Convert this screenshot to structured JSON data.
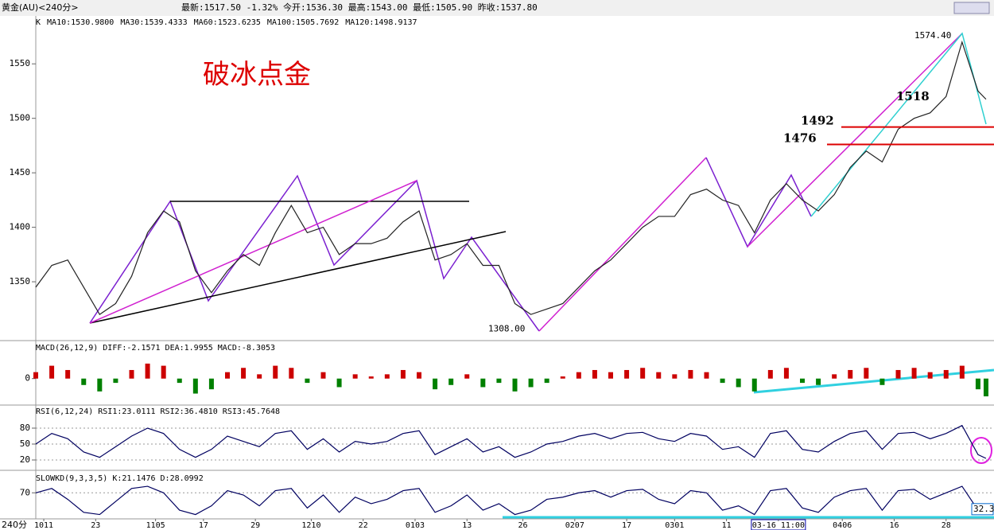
{
  "header": {
    "instrument": "黄金(AU)<240分>",
    "quote": "最新:1517.50 -1.32% 今开:1536.30 最高:1543.00 最低:1505.90 昨收:1537.80",
    "period": "240分"
  },
  "ma_legend": [
    {
      "text": "K",
      "color": "#000000"
    },
    {
      "text": "MA10:1530.9800",
      "color": "#000000"
    },
    {
      "text": "MA30:1539.4333",
      "color": "#c08000"
    },
    {
      "text": "MA60:1523.6235",
      "color": "#000060"
    },
    {
      "text": "MA100:1505.7692",
      "color": "#000060"
    },
    {
      "text": "MA120:1498.9137",
      "color": "#e070e0"
    }
  ],
  "chart_data": [
    {
      "type": "line",
      "title": "破冰点金",
      "color": "#222222",
      "ylim": [
        1296,
        1594
      ],
      "xlim": [
        0,
        240
      ],
      "yticks": [
        1350,
        1400,
        1450,
        1500,
        1550
      ],
      "x": [
        0,
        4,
        8,
        12,
        16,
        20,
        24,
        28,
        32,
        36,
        40,
        44,
        48,
        52,
        56,
        60,
        64,
        68,
        72,
        76,
        80,
        84,
        88,
        92,
        96,
        100,
        104,
        108,
        112,
        116,
        120,
        124,
        128,
        132,
        136,
        140,
        144,
        148,
        152,
        156,
        160,
        164,
        168,
        172,
        176,
        180,
        184,
        188,
        192,
        196,
        200,
        204,
        208,
        212,
        216,
        220,
        224,
        228,
        232,
        236,
        238
      ],
      "values": [
        1345,
        1365,
        1370,
        1345,
        1320,
        1330,
        1355,
        1395,
        1415,
        1405,
        1360,
        1340,
        1360,
        1375,
        1365,
        1395,
        1420,
        1395,
        1400,
        1375,
        1385,
        1385,
        1390,
        1405,
        1415,
        1370,
        1375,
        1385,
        1365,
        1365,
        1330,
        1320,
        1325,
        1330,
        1345,
        1360,
        1370,
        1385,
        1400,
        1410,
        1410,
        1430,
        1435,
        1425,
        1420,
        1395,
        1425,
        1440,
        1425,
        1415,
        1430,
        1455,
        1470,
        1460,
        1490,
        1500,
        1505,
        1520,
        1570,
        1525,
        1517.5
      ],
      "annotations": [
        {
          "value": 1574.4,
          "label": "1574.40",
          "color": "#000000"
        },
        {
          "value": 1308,
          "label": "1308.00",
          "color": "#000000"
        },
        {
          "value": 1518,
          "color": "#0000cc"
        }
      ],
      "hlines": [
        {
          "value": 1492,
          "color": "#dd0000"
        },
        {
          "value": 1476,
          "color": "#dd0000"
        }
      ]
    },
    {
      "type": "bar",
      "title": "MACD(26,12,9) DIFF:-2.1571 DEA:1.9955 MACD:-8.3053",
      "ylim": [
        -12,
        17
      ],
      "yticks": [
        0
      ],
      "x": [
        0,
        4,
        8,
        12,
        16,
        20,
        24,
        28,
        32,
        36,
        40,
        44,
        48,
        52,
        56,
        60,
        64,
        68,
        72,
        76,
        80,
        84,
        88,
        92,
        96,
        100,
        104,
        108,
        112,
        116,
        120,
        124,
        128,
        132,
        136,
        140,
        144,
        148,
        152,
        156,
        160,
        164,
        168,
        172,
        176,
        180,
        184,
        188,
        192,
        196,
        200,
        204,
        208,
        212,
        216,
        220,
        224,
        228,
        232,
        236,
        238
      ],
      "values": [
        3,
        6,
        4,
        -3,
        -6,
        -2,
        4,
        7,
        6,
        -2,
        -7,
        -5,
        3,
        5,
        2,
        6,
        5,
        -2,
        3,
        -4,
        2,
        1,
        2,
        4,
        3,
        -5,
        -3,
        2,
        -4,
        -2,
        -6,
        -4,
        -2,
        1,
        3,
        4,
        3,
        4,
        5,
        3,
        2,
        4,
        3,
        -2,
        -4,
        -6,
        4,
        5,
        -2,
        -3,
        2,
        4,
        5,
        -3,
        4,
        5,
        3,
        4,
        6,
        -5,
        -8.3
      ],
      "up_color": "#cc0000",
      "down_color": "#008000"
    },
    {
      "type": "line",
      "title": "RSI(6,12,24) RSI1:23.0111 RSI2:36.4810 RSI3:45.7648",
      "color": "#000060",
      "ylim": [
        2,
        122
      ],
      "yticks": [
        20,
        50,
        80
      ],
      "x": [
        0,
        4,
        8,
        12,
        16,
        20,
        24,
        28,
        32,
        36,
        40,
        44,
        48,
        52,
        56,
        60,
        64,
        68,
        72,
        76,
        80,
        84,
        88,
        92,
        96,
        100,
        104,
        108,
        112,
        116,
        120,
        124,
        128,
        132,
        136,
        140,
        144,
        148,
        152,
        156,
        160,
        164,
        168,
        172,
        176,
        180,
        184,
        188,
        192,
        196,
        200,
        204,
        208,
        212,
        216,
        220,
        224,
        228,
        232,
        236,
        238
      ],
      "values": [
        50,
        70,
        60,
        35,
        25,
        45,
        65,
        80,
        70,
        40,
        25,
        40,
        65,
        55,
        45,
        70,
        75,
        40,
        60,
        35,
        55,
        50,
        55,
        70,
        75,
        30,
        45,
        60,
        35,
        45,
        25,
        35,
        50,
        55,
        65,
        70,
        60,
        70,
        72,
        60,
        55,
        70,
        65,
        40,
        45,
        25,
        70,
        75,
        40,
        35,
        55,
        70,
        75,
        40,
        70,
        72,
        60,
        70,
        85,
        30,
        23.0111
      ]
    },
    {
      "type": "line",
      "title": "SLOWKD(9,3,3,5) K:21.1476 D:28.0992",
      "color": "#000060",
      "ylim": [
        10,
        120
      ],
      "yticks": [
        70
      ],
      "x": [
        0,
        4,
        8,
        12,
        16,
        20,
        24,
        28,
        32,
        36,
        40,
        44,
        48,
        52,
        56,
        60,
        64,
        68,
        72,
        76,
        80,
        84,
        88,
        92,
        96,
        100,
        104,
        108,
        112,
        116,
        120,
        124,
        128,
        132,
        136,
        140,
        144,
        148,
        152,
        156,
        160,
        164,
        168,
        172,
        176,
        180,
        184,
        188,
        192,
        196,
        200,
        204,
        208,
        212,
        216,
        220,
        224,
        228,
        232,
        236,
        238
      ],
      "values": [
        70,
        80,
        55,
        25,
        20,
        50,
        80,
        85,
        70,
        30,
        20,
        40,
        75,
        65,
        40,
        75,
        80,
        35,
        65,
        25,
        60,
        45,
        55,
        75,
        80,
        25,
        40,
        65,
        30,
        45,
        20,
        30,
        55,
        60,
        70,
        75,
        60,
        75,
        78,
        55,
        45,
        75,
        70,
        30,
        40,
        20,
        75,
        80,
        35,
        25,
        60,
        75,
        80,
        30,
        75,
        78,
        55,
        70,
        85,
        30,
        21.1476
      ],
      "last_label": {
        "value": 32.3,
        "label": "32.3"
      },
      "xticks": [
        {
          "value": 2,
          "label": "1011"
        },
        {
          "value": 15,
          "label": "23"
        },
        {
          "value": 30,
          "label": "1105"
        },
        {
          "value": 42,
          "label": "17"
        },
        {
          "value": 55,
          "label": "29"
        },
        {
          "value": 69,
          "label": "1210"
        },
        {
          "value": 82,
          "label": "22"
        },
        {
          "value": 95,
          "label": "0103"
        },
        {
          "value": 108,
          "label": "13"
        },
        {
          "value": 122,
          "label": "26"
        },
        {
          "value": 135,
          "label": "0207"
        },
        {
          "value": 148,
          "label": "17"
        },
        {
          "value": 160,
          "label": "0301"
        },
        {
          "value": 173,
          "label": "11"
        },
        {
          "value": 186,
          "label": "03-16 11:00"
        },
        {
          "value": 202,
          "label": "0406"
        },
        {
          "value": 215,
          "label": "16"
        },
        {
          "value": 228,
          "label": "28"
        }
      ]
    }
  ]
}
